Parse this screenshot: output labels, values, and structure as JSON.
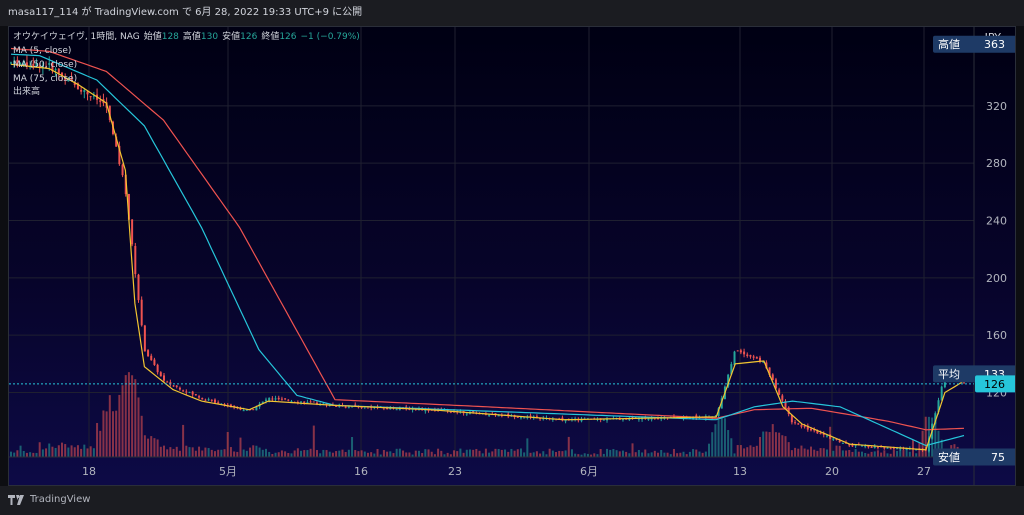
{
  "header": {
    "caption": "masa117_114 が TradingView.com で 6月 28, 2022 19:33 UTC+9 に公開"
  },
  "legend": {
    "symbol_line": "オウケイウェイヴ, 1時間, NAG",
    "open_label": "始値",
    "open_value": "128",
    "high_label": "高値",
    "high_value": "130",
    "low_label": "安値",
    "low_value": "126",
    "close_label": "終値",
    "close_value": "126",
    "change": "−1 (−0.79%)",
    "indicators": [
      "MA (5, close)",
      "MA (50, close)",
      "MA (75, close)",
      "出来高"
    ]
  },
  "price_axis": {
    "currency": "JPY"
  },
  "markers": {
    "high": {
      "label": "高値",
      "value": "363"
    },
    "avg": {
      "label": "平均",
      "value": "133"
    },
    "last": {
      "value": "126"
    },
    "low": {
      "label": "安値",
      "value": "75"
    }
  },
  "footer": {
    "brand": "TradingView"
  },
  "colors": {
    "ma5": "#f2c531",
    "ma50": "#26c6da",
    "ma75": "#ef5350",
    "candle_up": "#26a69a",
    "candle_down": "#ef5350",
    "last_price_bg": "#26c6da",
    "marker_bg": "#1e3a66"
  },
  "chart_data": {
    "type": "candlestick",
    "symbol": "オウケイウェイヴ",
    "interval": "1時間",
    "exchange": "NAG",
    "ylim": [
      75,
      375
    ],
    "y_ticks": [
      120,
      160,
      200,
      240,
      280,
      320
    ],
    "x_ticks": [
      "18",
      "5月",
      "16",
      "23",
      "6月",
      "13",
      "20",
      "27"
    ],
    "price_path": [
      [
        0,
        350
      ],
      [
        0.04,
        348
      ],
      [
        0.07,
        333
      ],
      [
        0.1,
        320
      ],
      [
        0.12,
        262
      ],
      [
        0.14,
        150
      ],
      [
        0.16,
        128
      ],
      [
        0.2,
        116
      ],
      [
        0.25,
        107
      ],
      [
        0.27,
        116
      ],
      [
        0.34,
        111
      ],
      [
        0.44,
        108
      ],
      [
        0.58,
        101
      ],
      [
        0.74,
        103
      ],
      [
        0.76,
        150
      ],
      [
        0.79,
        141
      ],
      [
        0.82,
        99
      ],
      [
        0.88,
        83
      ],
      [
        0.96,
        80
      ],
      [
        0.98,
        133
      ],
      [
        1,
        126
      ]
    ],
    "ma5_path": [
      [
        0,
        349
      ],
      [
        0.04,
        346
      ],
      [
        0.07,
        335
      ],
      [
        0.1,
        322
      ],
      [
        0.12,
        275
      ],
      [
        0.13,
        182
      ],
      [
        0.14,
        138
      ],
      [
        0.17,
        122
      ],
      [
        0.2,
        114
      ],
      [
        0.25,
        108
      ],
      [
        0.27,
        114
      ],
      [
        0.34,
        111
      ],
      [
        0.44,
        108
      ],
      [
        0.58,
        101
      ],
      [
        0.74,
        103
      ],
      [
        0.76,
        140
      ],
      [
        0.79,
        142
      ],
      [
        0.81,
        110
      ],
      [
        0.83,
        98
      ],
      [
        0.88,
        84
      ],
      [
        0.96,
        80
      ],
      [
        0.98,
        120
      ],
      [
        1,
        128
      ]
    ],
    "ma50_path": [
      [
        0,
        356
      ],
      [
        0.03,
        355
      ],
      [
        0.09,
        338
      ],
      [
        0.14,
        306
      ],
      [
        0.2,
        235
      ],
      [
        0.26,
        150
      ],
      [
        0.3,
        118
      ],
      [
        0.34,
        111
      ],
      [
        0.5,
        107
      ],
      [
        0.74,
        101
      ],
      [
        0.78,
        110
      ],
      [
        0.82,
        114
      ],
      [
        0.87,
        110
      ],
      [
        0.92,
        95
      ],
      [
        0.96,
        83
      ],
      [
        1,
        90
      ]
    ],
    "ma75_path": [
      [
        0,
        360
      ],
      [
        0.04,
        358
      ],
      [
        0.1,
        344
      ],
      [
        0.16,
        310
      ],
      [
        0.24,
        235
      ],
      [
        0.34,
        115
      ],
      [
        0.5,
        110
      ],
      [
        0.74,
        102
      ],
      [
        0.78,
        108
      ],
      [
        0.84,
        109
      ],
      [
        0.92,
        100
      ],
      [
        0.96,
        94
      ],
      [
        1,
        95
      ]
    ]
  }
}
